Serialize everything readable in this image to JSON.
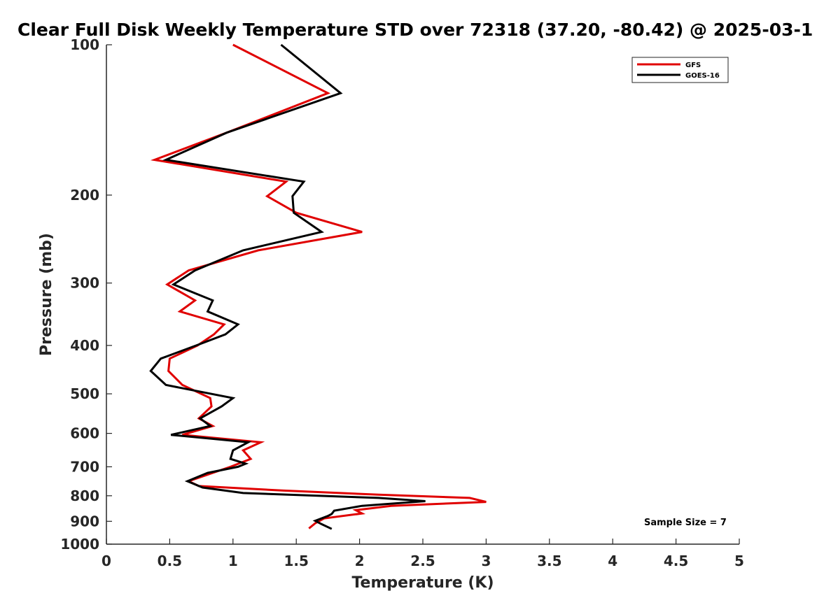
{
  "chart_data": {
    "type": "line",
    "title": "Clear Full Disk Weekly Temperature STD over 72318 (37.20, -80.42) @ 2025-03-1",
    "xlabel": "Temperature (K)",
    "ylabel": "Pressure (mb)",
    "xlim": [
      0,
      5
    ],
    "ylim": [
      100,
      1000
    ],
    "yscale": "log",
    "yreversed": true,
    "xticks": [
      "0",
      "0.5",
      "1",
      "1.5",
      "2",
      "2.5",
      "3",
      "3.5",
      "4",
      "4.5",
      "5"
    ],
    "yticks": [
      "100",
      "200",
      "300",
      "400",
      "500",
      "600",
      "700",
      "800",
      "900",
      "1000"
    ],
    "grid": false,
    "legend_position": "top-right",
    "annotation": "Sample Size = 7",
    "series": [
      {
        "name": "GFS",
        "color": "#e00000",
        "points": [
          [
            1.0,
            100
          ],
          [
            1.75,
            125
          ],
          [
            0.95,
            150
          ],
          [
            0.38,
            170
          ],
          [
            1.42,
            188
          ],
          [
            1.27,
            201
          ],
          [
            1.5,
            217
          ],
          [
            2.02,
            237
          ],
          [
            1.2,
            258
          ],
          [
            0.65,
            283
          ],
          [
            0.48,
            302
          ],
          [
            0.7,
            325
          ],
          [
            0.58,
            342
          ],
          [
            0.93,
            363
          ],
          [
            0.85,
            380
          ],
          [
            0.72,
            400
          ],
          [
            0.5,
            425
          ],
          [
            0.49,
            450
          ],
          [
            0.6,
            480
          ],
          [
            0.82,
            510
          ],
          [
            0.83,
            530
          ],
          [
            0.73,
            560
          ],
          [
            0.84,
            580
          ],
          [
            0.6,
            604
          ],
          [
            1.22,
            625
          ],
          [
            1.08,
            649
          ],
          [
            1.14,
            675
          ],
          [
            0.98,
            700
          ],
          [
            0.84,
            720
          ],
          [
            0.65,
            748
          ],
          [
            0.73,
            765
          ],
          [
            1.4,
            781
          ],
          [
            2.15,
            796
          ],
          [
            2.87,
            808
          ],
          [
            3.0,
            823
          ],
          [
            2.25,
            838
          ],
          [
            1.97,
            855
          ],
          [
            2.02,
            868
          ],
          [
            1.72,
            888
          ],
          [
            1.65,
            908
          ],
          [
            1.6,
            930
          ]
        ]
      },
      {
        "name": "GOES-16",
        "color": "#000000",
        "points": [
          [
            1.38,
            100
          ],
          [
            1.85,
            125
          ],
          [
            0.95,
            150
          ],
          [
            0.47,
            170
          ],
          [
            1.56,
            188
          ],
          [
            1.47,
            201
          ],
          [
            1.48,
            217
          ],
          [
            1.7,
            237
          ],
          [
            1.08,
            258
          ],
          [
            0.7,
            283
          ],
          [
            0.53,
            302
          ],
          [
            0.84,
            325
          ],
          [
            0.8,
            342
          ],
          [
            1.04,
            363
          ],
          [
            0.94,
            380
          ],
          [
            0.71,
            400
          ],
          [
            0.43,
            425
          ],
          [
            0.35,
            450
          ],
          [
            0.47,
            480
          ],
          [
            1.0,
            510
          ],
          [
            0.91,
            530
          ],
          [
            0.74,
            560
          ],
          [
            0.82,
            580
          ],
          [
            0.51,
            604
          ],
          [
            1.12,
            625
          ],
          [
            1.0,
            649
          ],
          [
            0.98,
            675
          ],
          [
            1.1,
            690
          ],
          [
            1.04,
            700
          ],
          [
            0.8,
            720
          ],
          [
            0.64,
            748
          ],
          [
            0.76,
            770
          ],
          [
            1.08,
            790
          ],
          [
            2.15,
            808
          ],
          [
            2.52,
            820
          ],
          [
            2.02,
            838
          ],
          [
            1.8,
            857
          ],
          [
            1.78,
            870
          ],
          [
            1.75,
            878
          ],
          [
            1.65,
            898
          ],
          [
            1.7,
            912
          ],
          [
            1.78,
            932
          ]
        ]
      }
    ]
  }
}
